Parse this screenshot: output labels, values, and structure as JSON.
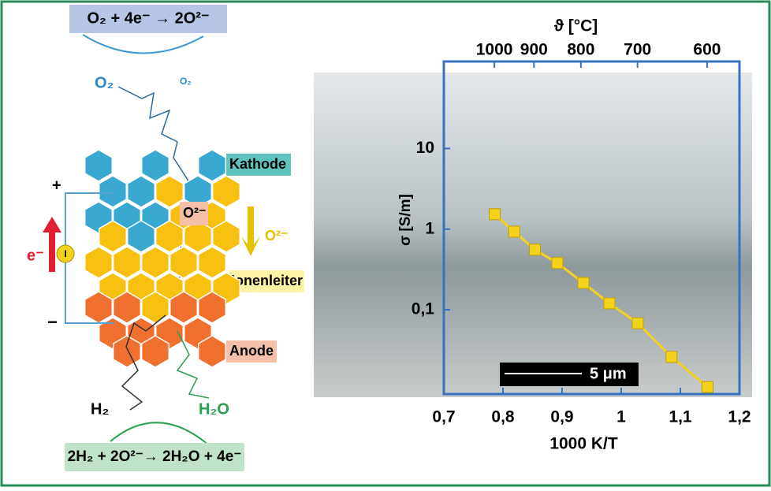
{
  "diagram": {
    "top_reaction": "O₂ + 4e⁻  →  2O²⁻",
    "o2_label": "O₂",
    "o2_small": "O₂",
    "plus": "+",
    "minus": "−",
    "electron": "e⁻",
    "current": "I",
    "kathode": "Kathode",
    "o2minus_inner": "O²⁻",
    "o2minus_arrow": "O²⁻",
    "ionenleiter": "Ionenleiter",
    "anode": "Anode",
    "h2": "H₂",
    "h2o": "H₂O",
    "bottom_reaction": "2H₂ + 2O²⁻→  2H₂O + 4e⁻"
  },
  "chart_data": {
    "type": "line",
    "x_label": "1000 K/T",
    "y_label": "σ [S/m]",
    "x2_label": "ϑ [°C]",
    "annotation": "5 μm",
    "x": [
      0.786,
      0.819,
      0.854,
      0.892,
      0.936,
      0.98,
      1.028,
      1.085,
      1.146
    ],
    "values": [
      1.53,
      0.93,
      0.556,
      0.38,
      0.215,
      0.12,
      0.068,
      0.026,
      0.011
    ],
    "color": "#f2d21a",
    "log_y": true,
    "xlim": [
      0.7,
      1.2
    ],
    "ylim": [
      0.009,
      120
    ],
    "xticks": [
      {
        "value": 0.7,
        "label": "0,7"
      },
      {
        "value": 0.8,
        "label": "0,8"
      },
      {
        "value": 0.9,
        "label": "0,9"
      },
      1,
      {
        "value": 1.1,
        "label": "1,1"
      },
      {
        "value": 1.2,
        "label": "1,2"
      }
    ],
    "yticks": [
      10,
      1,
      {
        "value": 0.1,
        "label": "0,1"
      }
    ],
    "x2ticks": [
      1000,
      900,
      800,
      700,
      600
    ]
  }
}
